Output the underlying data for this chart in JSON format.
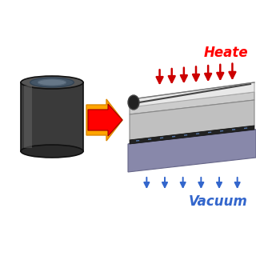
{
  "bg_color": "#ffffff",
  "arrow_color_outer": "#FFA500",
  "arrow_color_inner": "#FF0000",
  "heater_text": "Heate",
  "heater_text_color": "#FF0000",
  "vacuum_text": "Vacuum",
  "vacuum_text_color": "#3366CC",
  "cylinder_body_color": "#3a3a3a",
  "cylinder_top_color": "#555555",
  "cylinder_top2_color": "#888888",
  "plate_top_color": "#DADADA",
  "plate_front_color": "#B0B0B0",
  "plate_right_color": "#999999",
  "base_top_color": "#AAAAAA",
  "base_front_color": "#888888",
  "base_right_color": "#777777",
  "film_color": "#EEEEEE",
  "film_edge_color": "#CCCCCC",
  "roller_color": "#222222",
  "dashed_line_color": "#5577AA",
  "red_arrows_color": "#CC0000",
  "blue_arrows_color": "#3366CC",
  "dark_strip_color": "#222222"
}
